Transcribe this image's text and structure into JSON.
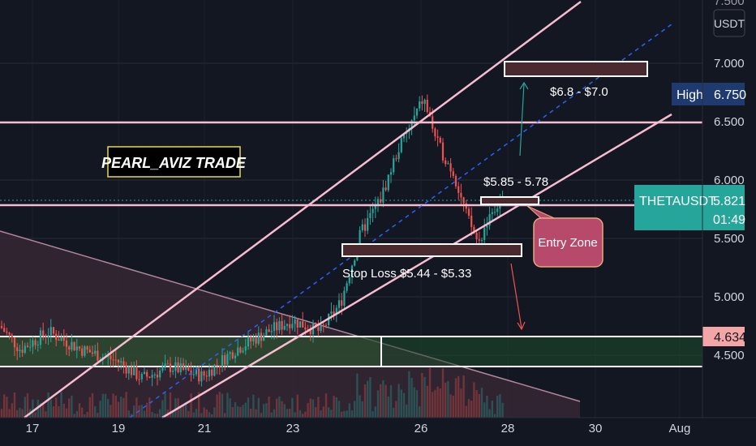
{
  "chart_data": {
    "type": "candlestick",
    "symbol_label": "THETAUSDT",
    "currency": "USDT",
    "last_price": 5.821,
    "countdown": "01:49",
    "high_label": "High",
    "high_value": 6.75,
    "support_value": 4.634,
    "ylim": [
      4.0,
      7.5
    ],
    "y_ticks": [
      "7.000",
      "6.500",
      "6.000",
      "5.500",
      "5.000",
      "4.500"
    ],
    "y_tick_values": [
      7.0,
      6.5,
      6.0,
      5.5,
      5.0,
      4.5
    ],
    "top_partial_tick": "7.500",
    "x_ticks": [
      "17",
      "19",
      "21",
      "23",
      "26",
      "28",
      "30",
      "Aug"
    ],
    "watermark": "PEARL_AVIZ TRADE",
    "annotations": {
      "target": "$6.8 - $7.0",
      "entry_range": "$5.85 - 5.78",
      "stop_loss": "Stop Loss $5.44 - $5.33",
      "entry_zone": "Entry Zone"
    },
    "colors": {
      "background": "#131722",
      "up": "#26a69a",
      "down": "#ef5350",
      "channel": "#f8bbd0",
      "trendline": "#2962ff",
      "support_zone": "#1e4d2b",
      "triangle": "#3a2a36",
      "last_price_badge": "#26a69a",
      "high_badge": "#1e3a6e",
      "support_badge": "#f4a6a6",
      "entry_box": "#b74a6b",
      "target_box": "#4a2a2e"
    }
  }
}
